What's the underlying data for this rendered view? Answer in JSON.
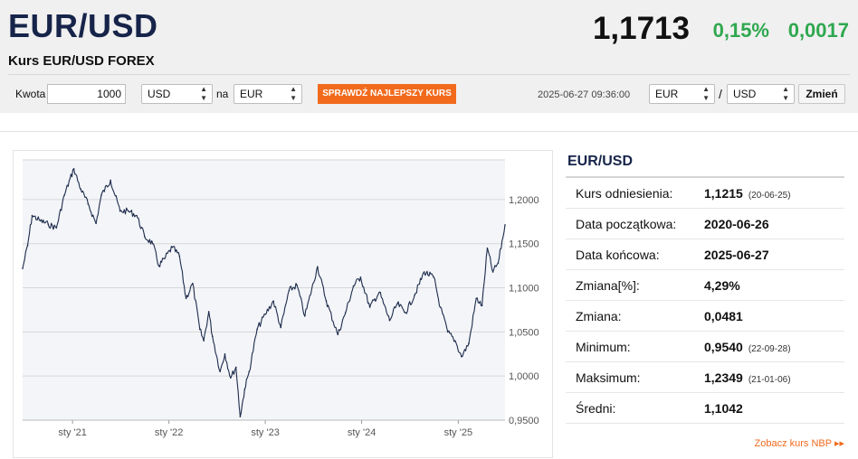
{
  "header": {
    "pair": "EUR/USD",
    "subtitle": "Kurs EUR/USD FOREX",
    "rate": "1,1713",
    "change_pct": "0,15%",
    "change_abs": "0,0017"
  },
  "converter": {
    "amount_label": "Kwota",
    "amount_value": "1000",
    "from_currency": "USD",
    "to_label": "na",
    "to_currency": "EUR",
    "check_button": "SPRAWDŹ NAJLEPSZY KURS",
    "datetime": "2025-06-27 09:36:00",
    "pair_left": "EUR",
    "slash": "/",
    "pair_right": "USD",
    "change_button": "Zmień"
  },
  "stats": {
    "title": "EUR/USD",
    "rows": [
      {
        "label": "Kurs odniesienia:",
        "value": "1,1215",
        "date": "(20-06-25)"
      },
      {
        "label": "Data początkowa:",
        "value": "2020-06-26",
        "date": ""
      },
      {
        "label": "Data końcowa:",
        "value": "2025-06-27",
        "date": ""
      },
      {
        "label": "Zmiana[%]:",
        "value": "4,29%",
        "date": ""
      },
      {
        "label": "Zmiana:",
        "value": "0,0481",
        "date": ""
      },
      {
        "label": "Minimum:",
        "value": "0,9540",
        "date": "(22-09-28)"
      },
      {
        "label": "Maksimum:",
        "value": "1,2349",
        "date": "(21-01-06)"
      },
      {
        "label": "Średni:",
        "value": "1,1042",
        "date": ""
      }
    ],
    "nbp_link": "Zobacz kurs NBP ▸▸"
  },
  "colors": {
    "accent": "#f26b1d",
    "positive": "#2fa84f",
    "title": "#17244a",
    "line": "#1d2b4c",
    "area": "#f3f5f8"
  },
  "chart_data": {
    "type": "line",
    "title": "",
    "xlabel": "",
    "ylabel": "",
    "x_ticks": [
      "sty '21",
      "sty '22",
      "sty '23",
      "sty '24",
      "sty '25"
    ],
    "y_ticks": [
      "1,2000",
      "1,1500",
      "1,1000",
      "1,0500",
      "1,0000",
      "0,9500"
    ],
    "ylim": [
      0.95,
      1.245
    ],
    "xlim": [
      "2020-06-26",
      "2025-06-27"
    ],
    "grid": true,
    "series": [
      {
        "x": [
          "2020-06-26",
          "2020-07-15",
          "2020-08-01",
          "2020-09-01",
          "2020-10-01",
          "2020-11-01",
          "2020-12-01",
          "2021-01-06",
          "2021-02-01",
          "2021-03-01",
          "2021-03-31",
          "2021-04-20",
          "2021-05-25",
          "2021-06-30",
          "2021-08-01",
          "2021-09-01",
          "2021-10-01",
          "2021-11-01",
          "2021-11-24",
          "2021-12-15",
          "2022-01-14",
          "2022-02-10",
          "2022-03-07",
          "2022-04-01",
          "2022-04-28",
          "2022-05-13",
          "2022-06-01",
          "2022-06-15",
          "2022-07-14",
          "2022-08-01",
          "2022-08-23",
          "2022-09-12",
          "2022-09-28",
          "2022-10-15",
          "2022-11-01",
          "2022-12-01",
          "2023-01-01",
          "2023-02-01",
          "2023-03-01",
          "2023-04-01",
          "2023-05-01",
          "2023-05-31",
          "2023-07-18",
          "2023-08-20",
          "2023-10-03",
          "2023-11-01",
          "2023-12-01",
          "2023-12-28",
          "2024-02-01",
          "2024-03-08",
          "2024-04-16",
          "2024-05-15",
          "2024-06-15",
          "2024-07-20",
          "2024-08-25",
          "2024-09-30",
          "2024-10-25",
          "2024-11-22",
          "2024-12-20",
          "2025-01-13",
          "2025-02-10",
          "2025-03-10",
          "2025-04-01",
          "2025-04-21",
          "2025-05-12",
          "2025-06-01",
          "2025-06-27"
        ],
        "y": [
          1.122,
          1.148,
          1.182,
          1.176,
          1.172,
          1.168,
          1.205,
          1.2349,
          1.212,
          1.195,
          1.173,
          1.205,
          1.222,
          1.187,
          1.187,
          1.182,
          1.158,
          1.15,
          1.125,
          1.133,
          1.146,
          1.136,
          1.088,
          1.105,
          1.053,
          1.04,
          1.073,
          1.045,
          1.005,
          1.025,
          0.998,
          1.01,
          0.954,
          0.985,
          1.005,
          1.053,
          1.07,
          1.085,
          1.055,
          1.097,
          1.103,
          1.068,
          1.124,
          1.085,
          1.047,
          1.072,
          1.102,
          1.112,
          1.078,
          1.095,
          1.063,
          1.082,
          1.072,
          1.092,
          1.118,
          1.112,
          1.078,
          1.05,
          1.04,
          1.022,
          1.037,
          1.088,
          1.08,
          1.145,
          1.118,
          1.128,
          1.1713
        ]
      }
    ]
  }
}
